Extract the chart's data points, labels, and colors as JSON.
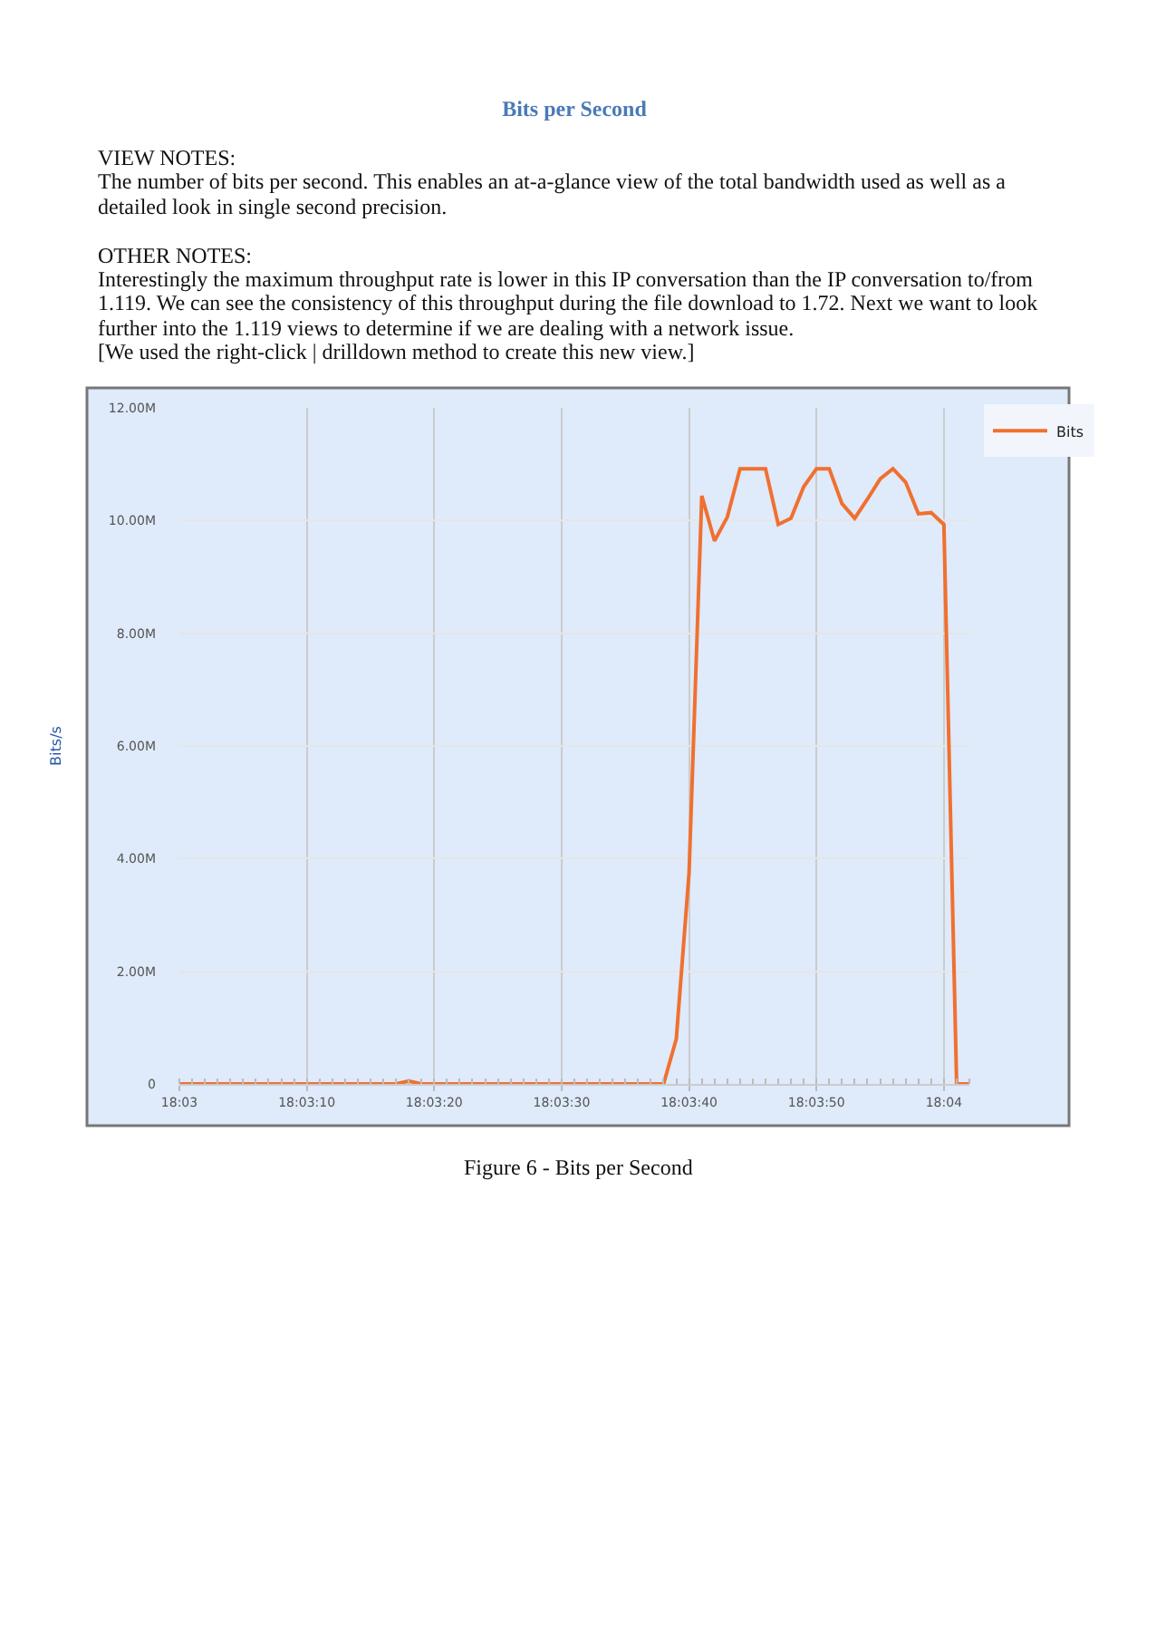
{
  "chart_data": {
    "type": "line",
    "title": "Bits per Second",
    "annotations": [
      "VIEW NOTES:",
      "The number of bits per second. This enables an at-a-glance view of the total bandwidth used as well as a detailed look in single second precision.",
      "OTHER NOTES:",
      "Interestingly the maximum throughput rate is lower in this IP conversation than the IP conversation to/from 1.119. We can see the consistency of this throughput during the file download to 1.72. Next we want to look further into the 1.119 views to determine if we are dealing with a network issue.",
      "[We used the right-click | drilldown method to create this new view.]",
      "Figure 6 - Bits per Second"
    ],
    "ylabel": "Bits/s",
    "categories": [
      "18:03",
      null,
      null,
      null,
      null,
      null,
      null,
      null,
      null,
      null,
      "18:03:10",
      null,
      null,
      null,
      null,
      null,
      null,
      null,
      null,
      null,
      "18:03:20",
      null,
      null,
      null,
      null,
      null,
      null,
      null,
      null,
      null,
      "18:03:30",
      null,
      null,
      null,
      null,
      null,
      null,
      null,
      null,
      null,
      "18:03:40",
      null,
      null,
      null,
      null,
      null,
      null,
      null,
      null,
      null,
      "18:03:50",
      null,
      null,
      null,
      null,
      null,
      null,
      null,
      null,
      null,
      "18:04",
      null,
      null
    ],
    "series": [
      {
        "name": "Bits",
        "color": "#f07030",
        "values": [
          0,
          0,
          0,
          0,
          0,
          0,
          0,
          0,
          0,
          0,
          0,
          0,
          0,
          0,
          0,
          0,
          0,
          0,
          50000,
          0,
          0,
          0,
          0,
          0,
          0,
          0,
          0,
          0,
          0,
          0,
          0,
          0,
          0,
          0,
          0,
          0,
          0,
          0,
          0,
          800000,
          3740000,
          10440000,
          9640000,
          10060000,
          10920000,
          10920000,
          10920000,
          9930000,
          10040000,
          10600000,
          10920000,
          10920000,
          10300000,
          10040000,
          10380000,
          10740000,
          10920000,
          10680000,
          10120000,
          10140000,
          9930000,
          0,
          0
        ]
      }
    ],
    "ylim": [
      0,
      12000000
    ],
    "yticks": [
      {
        "value": 0,
        "label": "0"
      },
      {
        "value": 2000000,
        "label": "2.00M"
      },
      {
        "value": 4000000,
        "label": "4.00M"
      },
      {
        "value": 6000000,
        "label": "6.00M"
      },
      {
        "value": 8000000,
        "label": "8.00M"
      },
      {
        "value": 10000000,
        "label": "10.00M"
      },
      {
        "value": 12000000,
        "label": "12.00M"
      }
    ],
    "grid": true,
    "legend": "top right",
    "marker": "none",
    "line_style": "solid"
  }
}
